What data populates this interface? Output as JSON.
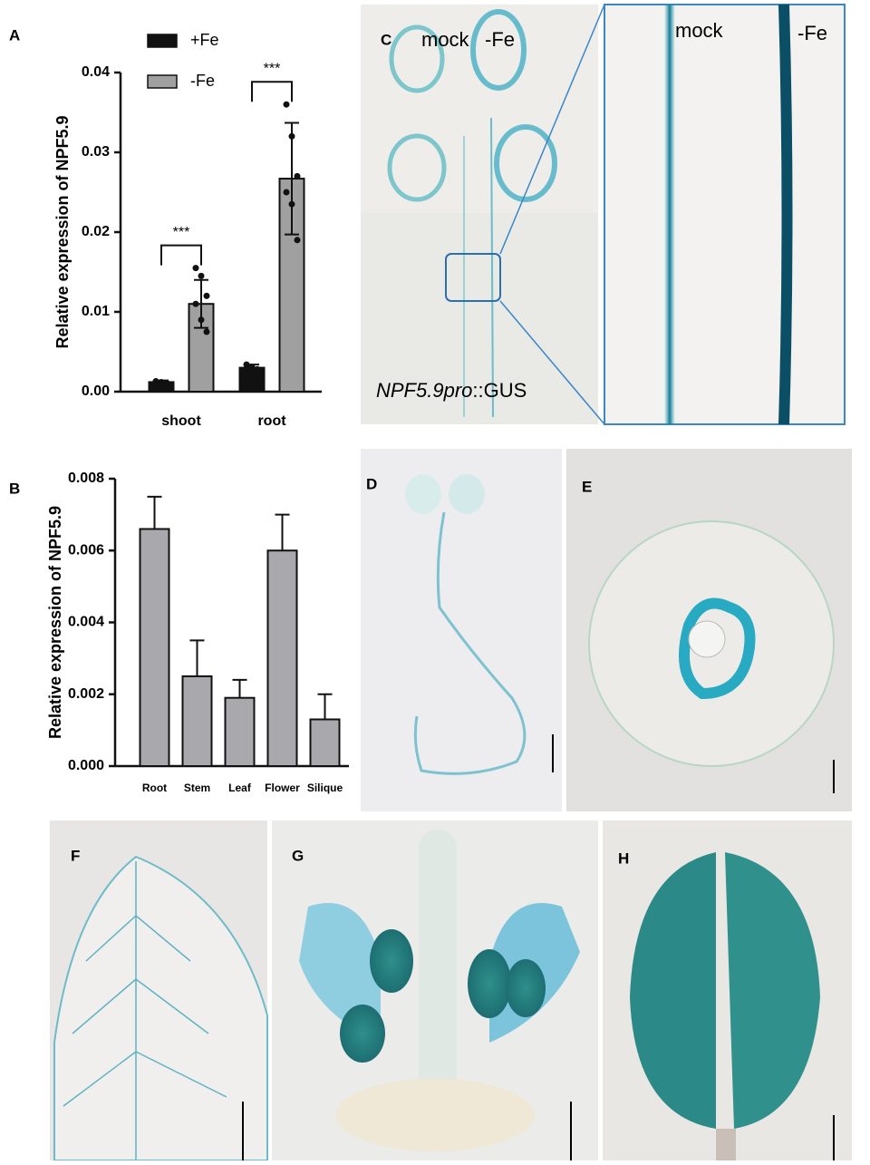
{
  "chart_data": [
    {
      "type": "bar",
      "panel": "A",
      "ylabel": "Relative expression of NPF5.9",
      "categories": [
        "shoot",
        "root"
      ],
      "series": [
        {
          "name": "+Fe",
          "color": "#111111",
          "values": [
            0.0012,
            0.003
          ],
          "errors": [
            0.0002,
            0.0004
          ],
          "points": [
            [
              0.0013,
              0.0012,
              0.0011,
              0.0012
            ],
            [
              0.0034,
              0.0031,
              0.0028,
              0.0029
            ]
          ]
        },
        {
          "name": "-Fe",
          "color": "#a0a0a0",
          "values": [
            0.011,
            0.0267
          ],
          "errors": [
            0.003,
            0.007
          ],
          "points": [
            [
              0.0155,
              0.0145,
              0.012,
              0.011,
              0.009,
              0.0075
            ],
            [
              0.036,
              0.032,
              0.027,
              0.025,
              0.0235,
              0.019
            ]
          ]
        }
      ],
      "annotations": [
        "***",
        "***"
      ],
      "ylim": [
        0,
        0.04
      ],
      "yticks": [
        {
          "value": 0,
          "label": "0.00"
        },
        {
          "value": 0.01,
          "label": "0.01"
        },
        {
          "value": 0.02,
          "label": "0.02"
        },
        {
          "value": 0.03,
          "label": "0.03"
        },
        {
          "value": 0.04,
          "label": "0.04"
        }
      ]
    },
    {
      "type": "bar",
      "panel": "B",
      "ylabel": "Relative expression of NPF5.9",
      "categories": [
        "Root",
        "Stem",
        "Leaf",
        "Flower",
        "Silique"
      ],
      "series": [
        {
          "color": "#a8a8ad",
          "values": [
            0.0066,
            0.0025,
            0.0019,
            0.006,
            0.0013
          ],
          "errors": [
            0.0009,
            0.001,
            0.0005,
            0.001,
            0.0007
          ]
        }
      ],
      "ylim": [
        0,
        0.008
      ],
      "yticks": [
        {
          "value": 0,
          "label": "0.000"
        },
        {
          "value": 0.002,
          "label": "0.002"
        },
        {
          "value": 0.004,
          "label": "0.004"
        },
        {
          "value": 0.006,
          "label": "0.006"
        },
        {
          "value": 0.008,
          "label": "0.008"
        }
      ]
    }
  ],
  "micrographs": {
    "C": {
      "label": "C",
      "texts": [
        "mock",
        "-Fe"
      ],
      "caption": [
        "NPF5.9pro",
        "::GUS"
      ]
    },
    "C_zoom": {
      "texts": [
        "mock",
        "-Fe"
      ]
    },
    "D": {
      "label": "D"
    },
    "E": {
      "label": "E"
    },
    "F": {
      "label": "F"
    },
    "G": {
      "label": "G"
    },
    "H": {
      "label": "H"
    }
  }
}
